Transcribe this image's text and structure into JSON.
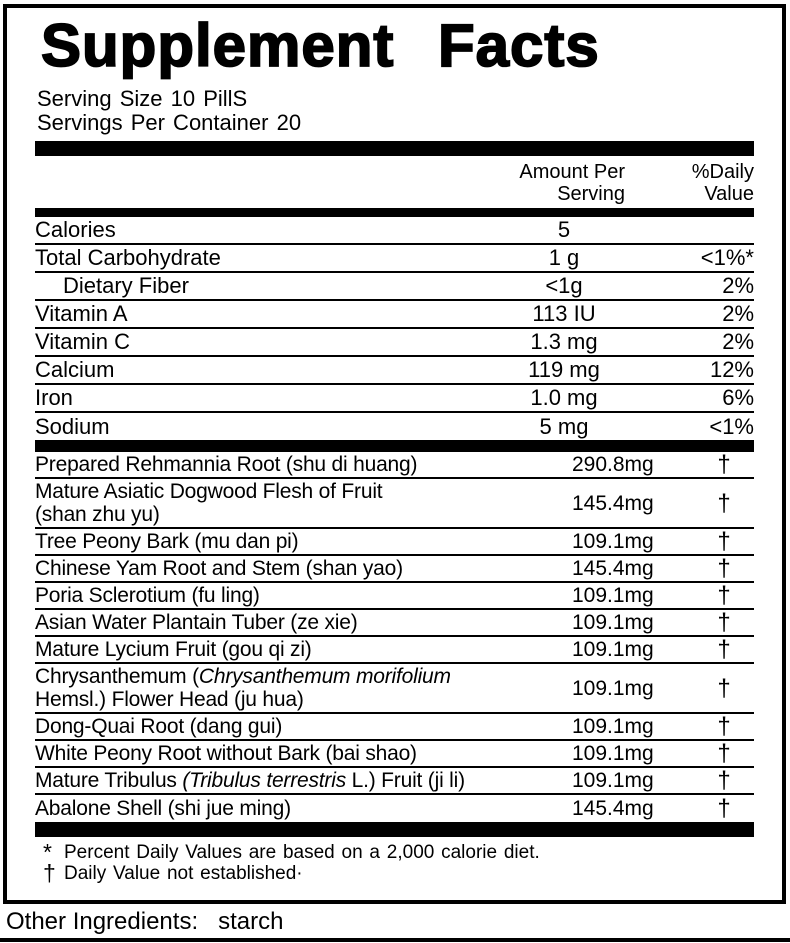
{
  "panel": {
    "title": "Supplement Facts",
    "serving_size_label": "Serving Size",
    "serving_size_value": "10 PillS",
    "servings_per_label": "Servings Per Container",
    "servings_per_value": "20"
  },
  "columns": {
    "amount_header": [
      "Amount Per",
      "Serving"
    ],
    "dv_header": [
      "%Daily",
      "Value"
    ]
  },
  "nutrients": [
    {
      "name": "Calories",
      "amount": "5",
      "dv": "",
      "indent": false
    },
    {
      "name": "Total Carbohydrate",
      "amount": "1 g",
      "dv": "<1%*",
      "indent": false
    },
    {
      "name": "Dietary Fiber",
      "amount": "<1g",
      "dv": "2%",
      "indent": true
    },
    {
      "name": "Vitamin A",
      "amount": "113 IU",
      "dv": "2%",
      "indent": false
    },
    {
      "name": "Vitamin C",
      "amount": "1.3 mg",
      "dv": "2%",
      "indent": false
    },
    {
      "name": "Calcium",
      "amount": "119 mg",
      "dv": "12%",
      "indent": false
    },
    {
      "name": "Iron",
      "amount": "1.0 mg",
      "dv": "6%",
      "indent": false
    },
    {
      "name": "Sodium",
      "amount": "5 mg",
      "dv": "<1%",
      "indent": false
    }
  ],
  "ingredients": [
    {
      "name": [
        [
          "Prepared Rehmannia Root (shu di huang)",
          false
        ]
      ],
      "amount": "290.8mg",
      "dv": "†",
      "tall": false
    },
    {
      "name": [
        [
          "Mature Asiatic Dogwood Flesh of Fruit",
          false
        ],
        [
          "\n",
          false
        ],
        [
          "(shan zhu yu)",
          false
        ]
      ],
      "amount": "145.4mg",
      "dv": "†",
      "tall": true
    },
    {
      "name": [
        [
          "Tree Peony Bark (mu dan pi)",
          false
        ]
      ],
      "amount": "109.1mg",
      "dv": "†",
      "tall": false
    },
    {
      "name": [
        [
          "Chinese Yam Root and Stem (shan yao)",
          false
        ]
      ],
      "amount": "145.4mg",
      "dv": "†",
      "tall": false
    },
    {
      "name": [
        [
          "Poria Sclerotium (fu ling)",
          false
        ]
      ],
      "amount": "109.1mg",
      "dv": "†",
      "tall": false
    },
    {
      "name": [
        [
          "Asian Water Plantain Tuber (ze xie)",
          false
        ]
      ],
      "amount": "109.1mg",
      "dv": "†",
      "tall": false
    },
    {
      "name": [
        [
          "Mature Lycium Fruit (gou qi zi)",
          false
        ]
      ],
      "amount": "109.1mg",
      "dv": "†",
      "tall": false
    },
    {
      "name": [
        [
          "Chrysanthemum (",
          false
        ],
        [
          "Chrysanthemum morifolium",
          true
        ],
        [
          "\n",
          false
        ],
        [
          "Hemsl.) Flower Head (ju hua)",
          false
        ]
      ],
      "amount": "109.1mg",
      "dv": "†",
      "tall": true
    },
    {
      "name": [
        [
          "Dong-Quai Root (dang gui)",
          false
        ]
      ],
      "amount": "109.1mg",
      "dv": "†",
      "tall": false
    },
    {
      "name": [
        [
          "White Peony Root without Bark (bai shao)",
          false
        ]
      ],
      "amount": "109.1mg",
      "dv": "†",
      "tall": false
    },
    {
      "name": [
        [
          "Mature Tribulus ",
          false
        ],
        [
          "(Tribulus terrestris",
          true
        ],
        [
          " L.) Fruit (ji li)",
          false
        ]
      ],
      "amount": "109.1mg",
      "dv": "†",
      "tall": false
    },
    {
      "name": [
        [
          "Abalone Shell (shi jue ming)",
          false
        ]
      ],
      "amount": "145.4mg",
      "dv": "†",
      "tall": false
    }
  ],
  "footnotes": [
    {
      "symbol": "*",
      "text": "Percent Daily Values are based on a 2,000 calorie diet."
    },
    {
      "symbol": "†",
      "text": "Daily Value not established·"
    }
  ],
  "other_ingredients": {
    "label": "Other Ingredients:",
    "value": "starch"
  }
}
